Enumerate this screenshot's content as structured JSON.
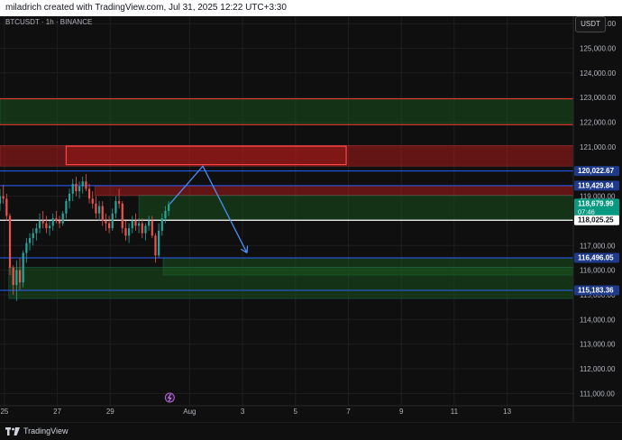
{
  "header": {
    "caption": "miladrich created with TradingView.com, Jul 31, 2025 12:22 UTC+3:30"
  },
  "symbol_label": "BTCUSDT · 1h · BINANCE",
  "currency_button": "USDT",
  "footer": {
    "brand": "TradingView"
  },
  "colors": {
    "background": "#0f0f0f",
    "grid": "#1e1e1e",
    "up_candle": "#26a69a",
    "down_candle": "#ef5350",
    "resistance_zone": "#b71c1c",
    "support_zone": "#1b5e20",
    "blue_line": "#2962ff",
    "projection_arrow": "#4d8ef7",
    "last_price_label": "#089981"
  },
  "chart_data": {
    "type": "candlestick",
    "interval": "1h",
    "xlabel": "",
    "ylabel": "",
    "ylim": [
      110500,
      126300
    ],
    "x_range": [
      "2025-07-24T20:00",
      "2025-08-15T12:00"
    ],
    "grid": true,
    "x_ticks": [
      {
        "label": "25",
        "date": "2025-07-25"
      },
      {
        "label": "27",
        "date": "2025-07-27"
      },
      {
        "label": "29",
        "date": "2025-07-29"
      },
      {
        "label": "Aug",
        "date": "2025-08-01"
      },
      {
        "label": "3",
        "date": "2025-08-03"
      },
      {
        "label": "5",
        "date": "2025-08-05"
      },
      {
        "label": "7",
        "date": "2025-08-07"
      },
      {
        "label": "9",
        "date": "2025-08-09"
      },
      {
        "label": "11",
        "date": "2025-08-11"
      },
      {
        "label": "13",
        "date": "2025-08-13"
      }
    ],
    "y_ticks": [
      {
        "value": 126000,
        "label": "126,000.00"
      },
      {
        "value": 125000,
        "label": "125,000.00"
      },
      {
        "value": 124000,
        "label": "124,000.00"
      },
      {
        "value": 123000,
        "label": "123,000.00"
      },
      {
        "value": 122000,
        "label": "122,000.00"
      },
      {
        "value": 121000,
        "label": "121,000.00"
      },
      {
        "value": 119000,
        "label": "119,000.00"
      },
      {
        "value": 117000,
        "label": "117,000.00"
      },
      {
        "value": 116000,
        "label": "116,000.00"
      },
      {
        "value": 115000,
        "label": "115,000.00"
      },
      {
        "value": 114000,
        "label": "114,000.00"
      },
      {
        "value": 113000,
        "label": "113,000.00"
      },
      {
        "value": 112000,
        "label": "112,000.00"
      },
      {
        "value": 111000,
        "label": "111,000.00"
      }
    ],
    "price_labels": [
      {
        "value": 120022.67,
        "label": "120,022.67",
        "style": "blue"
      },
      {
        "value": 119429.84,
        "label": "119,429.84",
        "style": "blue"
      },
      {
        "value": 118679.99,
        "label": "118,679.99",
        "sublabel": "07:46",
        "style": "last"
      },
      {
        "value": 118025.25,
        "label": "118,025.25",
        "style": "white"
      },
      {
        "value": 116496.05,
        "label": "116,496.05",
        "style": "blue"
      },
      {
        "value": 115183.36,
        "label": "115,183.36",
        "style": "blue"
      }
    ],
    "horizontal_lines": [
      {
        "value": 122950,
        "color": "red"
      },
      {
        "value": 121900,
        "color": "red"
      },
      {
        "value": 120022.67,
        "color": "blue"
      },
      {
        "value": 119429.84,
        "color": "blue"
      },
      {
        "value": 118025.25,
        "color": "white"
      },
      {
        "value": 116496.05,
        "color": "blue"
      },
      {
        "value": 115183.36,
        "color": "blue"
      }
    ],
    "zones": [
      {
        "kind": "support",
        "y1": 121900,
        "y2": 122950,
        "x1": "2025-07-24T20:00",
        "x2": "2025-08-15T12:00"
      },
      {
        "kind": "resistance",
        "y1": 120220,
        "y2": 121060,
        "x1": "2025-07-24T20:00",
        "x2": "2025-08-15T12:00"
      },
      {
        "kind": "resistance-box",
        "y1": 120280,
        "y2": 121030,
        "x1": "2025-07-27T08:00",
        "x2": "2025-08-06T22:00"
      },
      {
        "kind": "resistance",
        "y1": 119030,
        "y2": 119429.84,
        "x1": "2025-07-28T10:00",
        "x2": "2025-08-15T12:00"
      },
      {
        "kind": "support",
        "y1": 118025.25,
        "y2": 119030,
        "x1": "2025-07-30T02:00",
        "x2": "2025-08-15T12:00"
      },
      {
        "kind": "support",
        "y1": 115800,
        "y2": 116496.05,
        "x1": "2025-07-31T00:00",
        "x2": "2025-08-15T12:00"
      },
      {
        "kind": "support",
        "y1": 114850,
        "y2": 116120,
        "x1": "2025-07-25T04:00",
        "x2": "2025-08-15T12:00"
      }
    ],
    "projection": {
      "points": [
        {
          "t": "2025-07-31T06:00",
          "v": 118680
        },
        {
          "t": "2025-08-01T12:00",
          "v": 120220
        },
        {
          "t": "2025-08-03T04:00",
          "v": 116700
        }
      ]
    },
    "candles": [
      {
        "t": "2025-07-24T20:00",
        "o": 118700,
        "h": 119300,
        "l": 118400,
        "c": 119000
      },
      {
        "t": "2025-07-24T23:00",
        "o": 119000,
        "h": 119450,
        "l": 118700,
        "c": 118900
      },
      {
        "t": "2025-07-25T02:00",
        "o": 118900,
        "h": 119100,
        "l": 118000,
        "c": 118200
      },
      {
        "t": "2025-07-25T05:00",
        "o": 118200,
        "h": 118300,
        "l": 115800,
        "c": 116100
      },
      {
        "t": "2025-07-25T08:00",
        "o": 116100,
        "h": 116200,
        "l": 115000,
        "c": 115400
      },
      {
        "t": "2025-07-25T11:00",
        "o": 115400,
        "h": 116400,
        "l": 114750,
        "c": 116000
      },
      {
        "t": "2025-07-25T14:00",
        "o": 116000,
        "h": 116500,
        "l": 115200,
        "c": 115500
      },
      {
        "t": "2025-07-25T17:00",
        "o": 115500,
        "h": 116800,
        "l": 115300,
        "c": 116700
      },
      {
        "t": "2025-07-25T20:00",
        "o": 116700,
        "h": 117300,
        "l": 116300,
        "c": 117100
      },
      {
        "t": "2025-07-25T23:00",
        "o": 117100,
        "h": 117500,
        "l": 116800,
        "c": 117300
      },
      {
        "t": "2025-07-26T02:00",
        "o": 117300,
        "h": 117700,
        "l": 117000,
        "c": 117500
      },
      {
        "t": "2025-07-26T05:00",
        "o": 117500,
        "h": 117900,
        "l": 117200,
        "c": 117700
      },
      {
        "t": "2025-07-26T08:00",
        "o": 117700,
        "h": 118300,
        "l": 117500,
        "c": 118000
      },
      {
        "t": "2025-07-26T11:00",
        "o": 118000,
        "h": 118400,
        "l": 117700,
        "c": 117900
      },
      {
        "t": "2025-07-26T14:00",
        "o": 117900,
        "h": 118200,
        "l": 117500,
        "c": 117700
      },
      {
        "t": "2025-07-26T17:00",
        "o": 117700,
        "h": 118000,
        "l": 117400,
        "c": 117800
      },
      {
        "t": "2025-07-26T20:00",
        "o": 117800,
        "h": 118300,
        "l": 117600,
        "c": 118100
      },
      {
        "t": "2025-07-26T23:00",
        "o": 118100,
        "h": 118400,
        "l": 117900,
        "c": 118000
      },
      {
        "t": "2025-07-27T02:00",
        "o": 118000,
        "h": 118200,
        "l": 117700,
        "c": 117900
      },
      {
        "t": "2025-07-27T05:00",
        "o": 117900,
        "h": 118400,
        "l": 117800,
        "c": 118300
      },
      {
        "t": "2025-07-27T08:00",
        "o": 118300,
        "h": 118900,
        "l": 118100,
        "c": 118800
      },
      {
        "t": "2025-07-27T11:00",
        "o": 118800,
        "h": 119300,
        "l": 118500,
        "c": 119100
      },
      {
        "t": "2025-07-27T14:00",
        "o": 119100,
        "h": 119700,
        "l": 118800,
        "c": 119500
      },
      {
        "t": "2025-07-27T17:00",
        "o": 119500,
        "h": 119800,
        "l": 119000,
        "c": 119200
      },
      {
        "t": "2025-07-27T20:00",
        "o": 119200,
        "h": 119600,
        "l": 118900,
        "c": 119400
      },
      {
        "t": "2025-07-27T23:00",
        "o": 119400,
        "h": 119800,
        "l": 119100,
        "c": 119600
      },
      {
        "t": "2025-07-28T02:00",
        "o": 119600,
        "h": 119900,
        "l": 119200,
        "c": 119300
      },
      {
        "t": "2025-07-28T05:00",
        "o": 119300,
        "h": 119500,
        "l": 118700,
        "c": 118900
      },
      {
        "t": "2025-07-28T08:00",
        "o": 118900,
        "h": 119200,
        "l": 118500,
        "c": 118700
      },
      {
        "t": "2025-07-28T11:00",
        "o": 118700,
        "h": 119000,
        "l": 118100,
        "c": 118300
      },
      {
        "t": "2025-07-28T14:00",
        "o": 118300,
        "h": 118800,
        "l": 118000,
        "c": 118600
      },
      {
        "t": "2025-07-28T17:00",
        "o": 118600,
        "h": 118800,
        "l": 117800,
        "c": 118000
      },
      {
        "t": "2025-07-28T20:00",
        "o": 118000,
        "h": 118300,
        "l": 117600,
        "c": 117900
      },
      {
        "t": "2025-07-28T23:00",
        "o": 117900,
        "h": 118200,
        "l": 117500,
        "c": 117700
      },
      {
        "t": "2025-07-29T02:00",
        "o": 117700,
        "h": 118500,
        "l": 117600,
        "c": 118300
      },
      {
        "t": "2025-07-29T05:00",
        "o": 118300,
        "h": 119000,
        "l": 118100,
        "c": 118800
      },
      {
        "t": "2025-07-29T08:00",
        "o": 118800,
        "h": 119300,
        "l": 118500,
        "c": 118700
      },
      {
        "t": "2025-07-29T11:00",
        "o": 118700,
        "h": 118800,
        "l": 117500,
        "c": 117700
      },
      {
        "t": "2025-07-29T14:00",
        "o": 117700,
        "h": 118000,
        "l": 117200,
        "c": 117400
      },
      {
        "t": "2025-07-29T17:00",
        "o": 117400,
        "h": 117900,
        "l": 117100,
        "c": 117700
      },
      {
        "t": "2025-07-29T20:00",
        "o": 117700,
        "h": 118200,
        "l": 117500,
        "c": 118000
      },
      {
        "t": "2025-07-29T23:00",
        "o": 118000,
        "h": 118300,
        "l": 117600,
        "c": 117800
      },
      {
        "t": "2025-07-30T02:00",
        "o": 117800,
        "h": 118100,
        "l": 117500,
        "c": 117900
      },
      {
        "t": "2025-07-30T05:00",
        "o": 117900,
        "h": 118100,
        "l": 117300,
        "c": 117500
      },
      {
        "t": "2025-07-30T08:00",
        "o": 117500,
        "h": 117900,
        "l": 117200,
        "c": 117800
      },
      {
        "t": "2025-07-30T11:00",
        "o": 117800,
        "h": 118200,
        "l": 117600,
        "c": 118000
      },
      {
        "t": "2025-07-30T14:00",
        "o": 118000,
        "h": 118200,
        "l": 117300,
        "c": 117400
      },
      {
        "t": "2025-07-30T17:00",
        "o": 117400,
        "h": 117500,
        "l": 116300,
        "c": 116600
      },
      {
        "t": "2025-07-30T20:00",
        "o": 116600,
        "h": 117900,
        "l": 116500,
        "c": 117600
      },
      {
        "t": "2025-07-30T23:00",
        "o": 117600,
        "h": 118300,
        "l": 117400,
        "c": 118100
      },
      {
        "t": "2025-07-31T02:00",
        "o": 118100,
        "h": 118600,
        "l": 117900,
        "c": 118400
      },
      {
        "t": "2025-07-31T05:00",
        "o": 118400,
        "h": 118800,
        "l": 118200,
        "c": 118680
      }
    ]
  }
}
